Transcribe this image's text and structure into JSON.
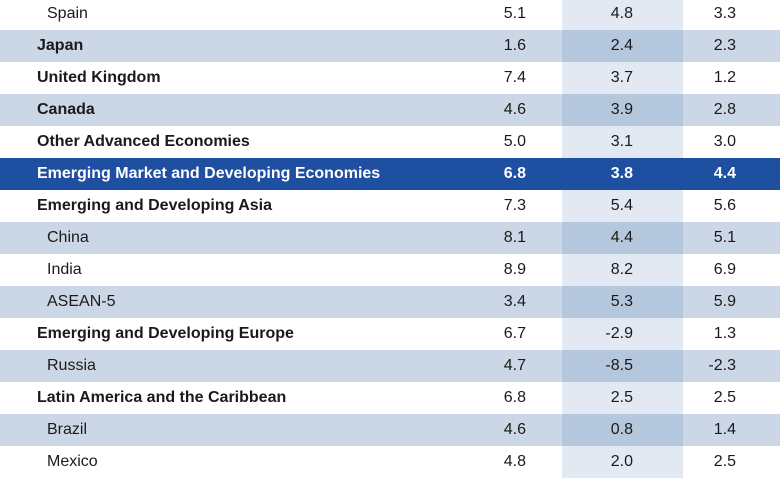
{
  "rows": [
    {
      "label": "Spain",
      "style": "sub",
      "v1": "5.1",
      "v2": "4.8",
      "v3": "3.3"
    },
    {
      "label": "Japan",
      "style": "bold",
      "v1": "1.6",
      "v2": "2.4",
      "v3": "2.3"
    },
    {
      "label": "United Kingdom",
      "style": "bold",
      "v1": "7.4",
      "v2": "3.7",
      "v3": "1.2"
    },
    {
      "label": "Canada",
      "style": "bold",
      "v1": "4.6",
      "v2": "3.9",
      "v3": "2.8"
    },
    {
      "label": "Other Advanced Economies",
      "style": "bold",
      "v1": "5.0",
      "v2": "3.1",
      "v3": "3.0"
    },
    {
      "label": "Emerging Market and Developing Economies",
      "style": "highlight",
      "v1": "6.8",
      "v2": "3.8",
      "v3": "4.4"
    },
    {
      "label": "Emerging and Developing Asia",
      "style": "bold",
      "v1": "7.3",
      "v2": "5.4",
      "v3": "5.6"
    },
    {
      "label": "China",
      "style": "sub",
      "v1": "8.1",
      "v2": "4.4",
      "v3": "5.1"
    },
    {
      "label": "India",
      "style": "sub",
      "v1": "8.9",
      "v2": "8.2",
      "v3": "6.9"
    },
    {
      "label": "ASEAN-5",
      "style": "sub",
      "v1": "3.4",
      "v2": "5.3",
      "v3": "5.9"
    },
    {
      "label": "Emerging and Developing Europe",
      "style": "bold",
      "v1": "6.7",
      "v2": "-2.9",
      "v3": "1.3"
    },
    {
      "label": "Russia",
      "style": "sub",
      "v1": "4.7",
      "v2": "-8.5",
      "v3": "-2.3"
    },
    {
      "label": "Latin America and the Caribbean",
      "style": "bold",
      "v1": "6.8",
      "v2": "2.5",
      "v3": "2.5"
    },
    {
      "label": "Brazil",
      "style": "sub",
      "v1": "4.6",
      "v2": "0.8",
      "v3": "1.4"
    },
    {
      "label": "Mexico",
      "style": "sub",
      "v1": "4.8",
      "v2": "2.0",
      "v3": "2.5"
    }
  ]
}
